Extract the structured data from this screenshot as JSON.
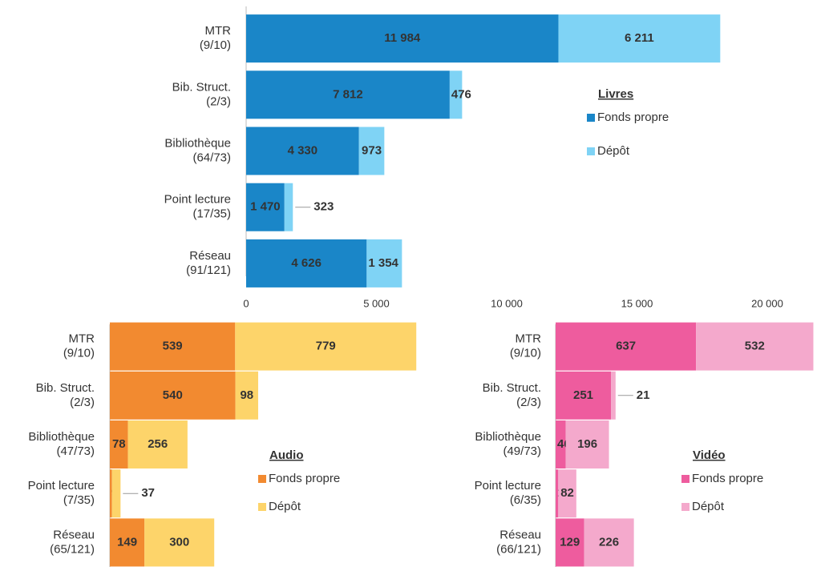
{
  "chart_data": [
    {
      "type": "stacked-bar",
      "orientation": "horizontal",
      "legend_title": "Livres",
      "categories": [
        [
          "MTR",
          "(9/10)"
        ],
        [
          "Bib. Struct.",
          "(2/3)"
        ],
        [
          "Bibliothèque",
          "(64/73)"
        ],
        [
          "Point lecture",
          "(17/35)"
        ],
        [
          "Réseau",
          "(91/121)"
        ]
      ],
      "series": [
        {
          "name": "Fonds propre",
          "color": "#1a86c8",
          "values": [
            11984,
            7812,
            4330,
            1470,
            4626
          ],
          "value_labels": [
            "11 984",
            "7 812",
            "4 330",
            "1 470",
            "4 626"
          ]
        },
        {
          "name": "Dépôt",
          "color": "#7fd3f5",
          "values": [
            6211,
            476,
            973,
            323,
            1354
          ],
          "value_labels": [
            "6 211",
            "476",
            "973",
            "323",
            "1 354"
          ]
        }
      ],
      "xlim": [
        0,
        22000
      ],
      "xticks": [
        0,
        {
          "value": 5000,
          "label": "5 000"
        },
        {
          "value": 10000,
          "label": "10 000"
        },
        {
          "value": 15000,
          "label": "15 000"
        },
        {
          "value": 20000,
          "label": "20 000"
        }
      ]
    },
    {
      "type": "stacked-bar",
      "orientation": "horizontal",
      "legend_title": "Audio",
      "categories": [
        [
          "MTR",
          "(9/10)"
        ],
        [
          "Bib. Struct.",
          "(2/3)"
        ],
        [
          "Bibliothèque",
          "(47/73)"
        ],
        [
          "Point lecture",
          "(7/35)"
        ],
        [
          "Réseau",
          "(65/121)"
        ]
      ],
      "series": [
        {
          "name": "Fonds propre",
          "color": "#f28a30",
          "values": [
            539,
            540,
            78,
            9,
            149
          ]
        },
        {
          "name": "Dépôt",
          "color": "#fdd46a",
          "values": [
            779,
            98,
            256,
            37,
            300
          ]
        }
      ],
      "xlim": [
        0,
        1400
      ]
    },
    {
      "type": "stacked-bar",
      "orientation": "horizontal",
      "legend_title": "Vidéo",
      "categories": [
        [
          "MTR",
          "(9/10)"
        ],
        [
          "Bib. Struct.",
          "(2/3)"
        ],
        [
          "Bibliothèque",
          "(49/73)"
        ],
        [
          "Point lecture",
          "(6/35)"
        ],
        [
          "Réseau",
          "(66/121)"
        ]
      ],
      "series": [
        {
          "name": "Fonds propre",
          "color": "#ee5c9e",
          "values": [
            637,
            251,
            46,
            12,
            129
          ]
        },
        {
          "name": "Dépôt",
          "color": "#f4a9cc",
          "values": [
            532,
            21,
            196,
            82,
            226
          ]
        }
      ],
      "xlim": [
        0,
        1200
      ]
    }
  ]
}
